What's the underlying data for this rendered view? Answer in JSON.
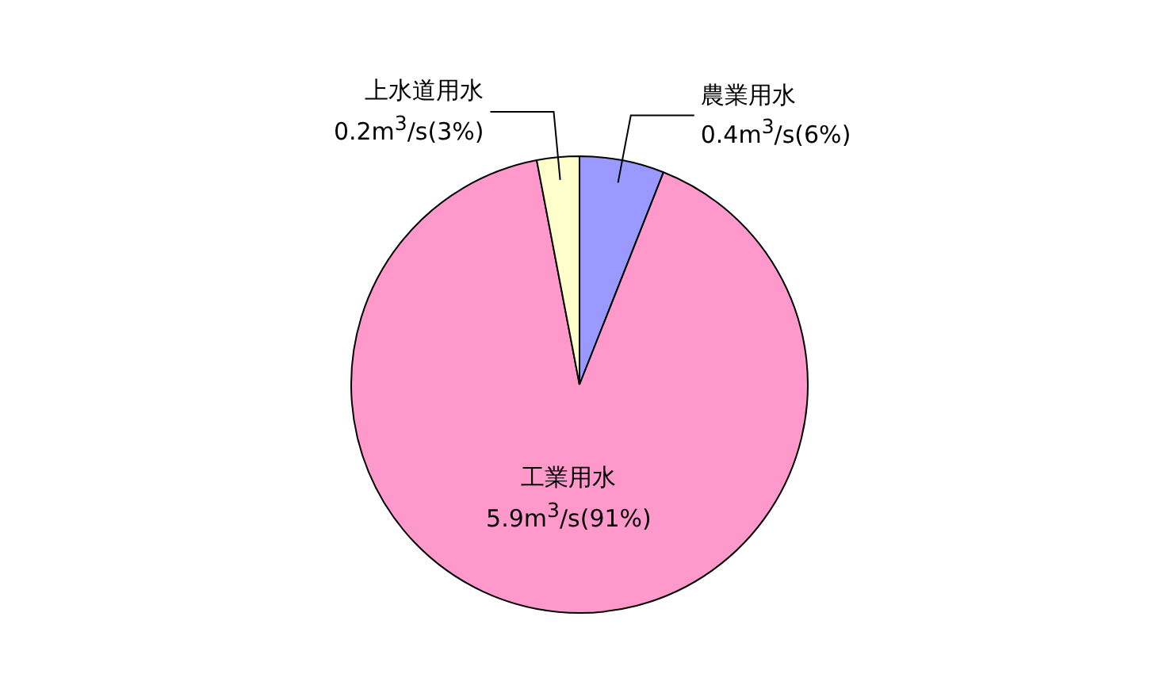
{
  "chart_data": {
    "type": "pie",
    "categories": [
      "農業用水",
      "工業用水",
      "上水道用水"
    ],
    "values": [
      6,
      91,
      3
    ],
    "value_labels": [
      "0.4m$^{3}$/s(6%)",
      "5.9m$^{3}$/s(91%)",
      "0.2m$^{3}$/s(3%)"
    ],
    "colors": [
      "#9999ff",
      "#ff99cc",
      "#ffffcc"
    ]
  }
}
